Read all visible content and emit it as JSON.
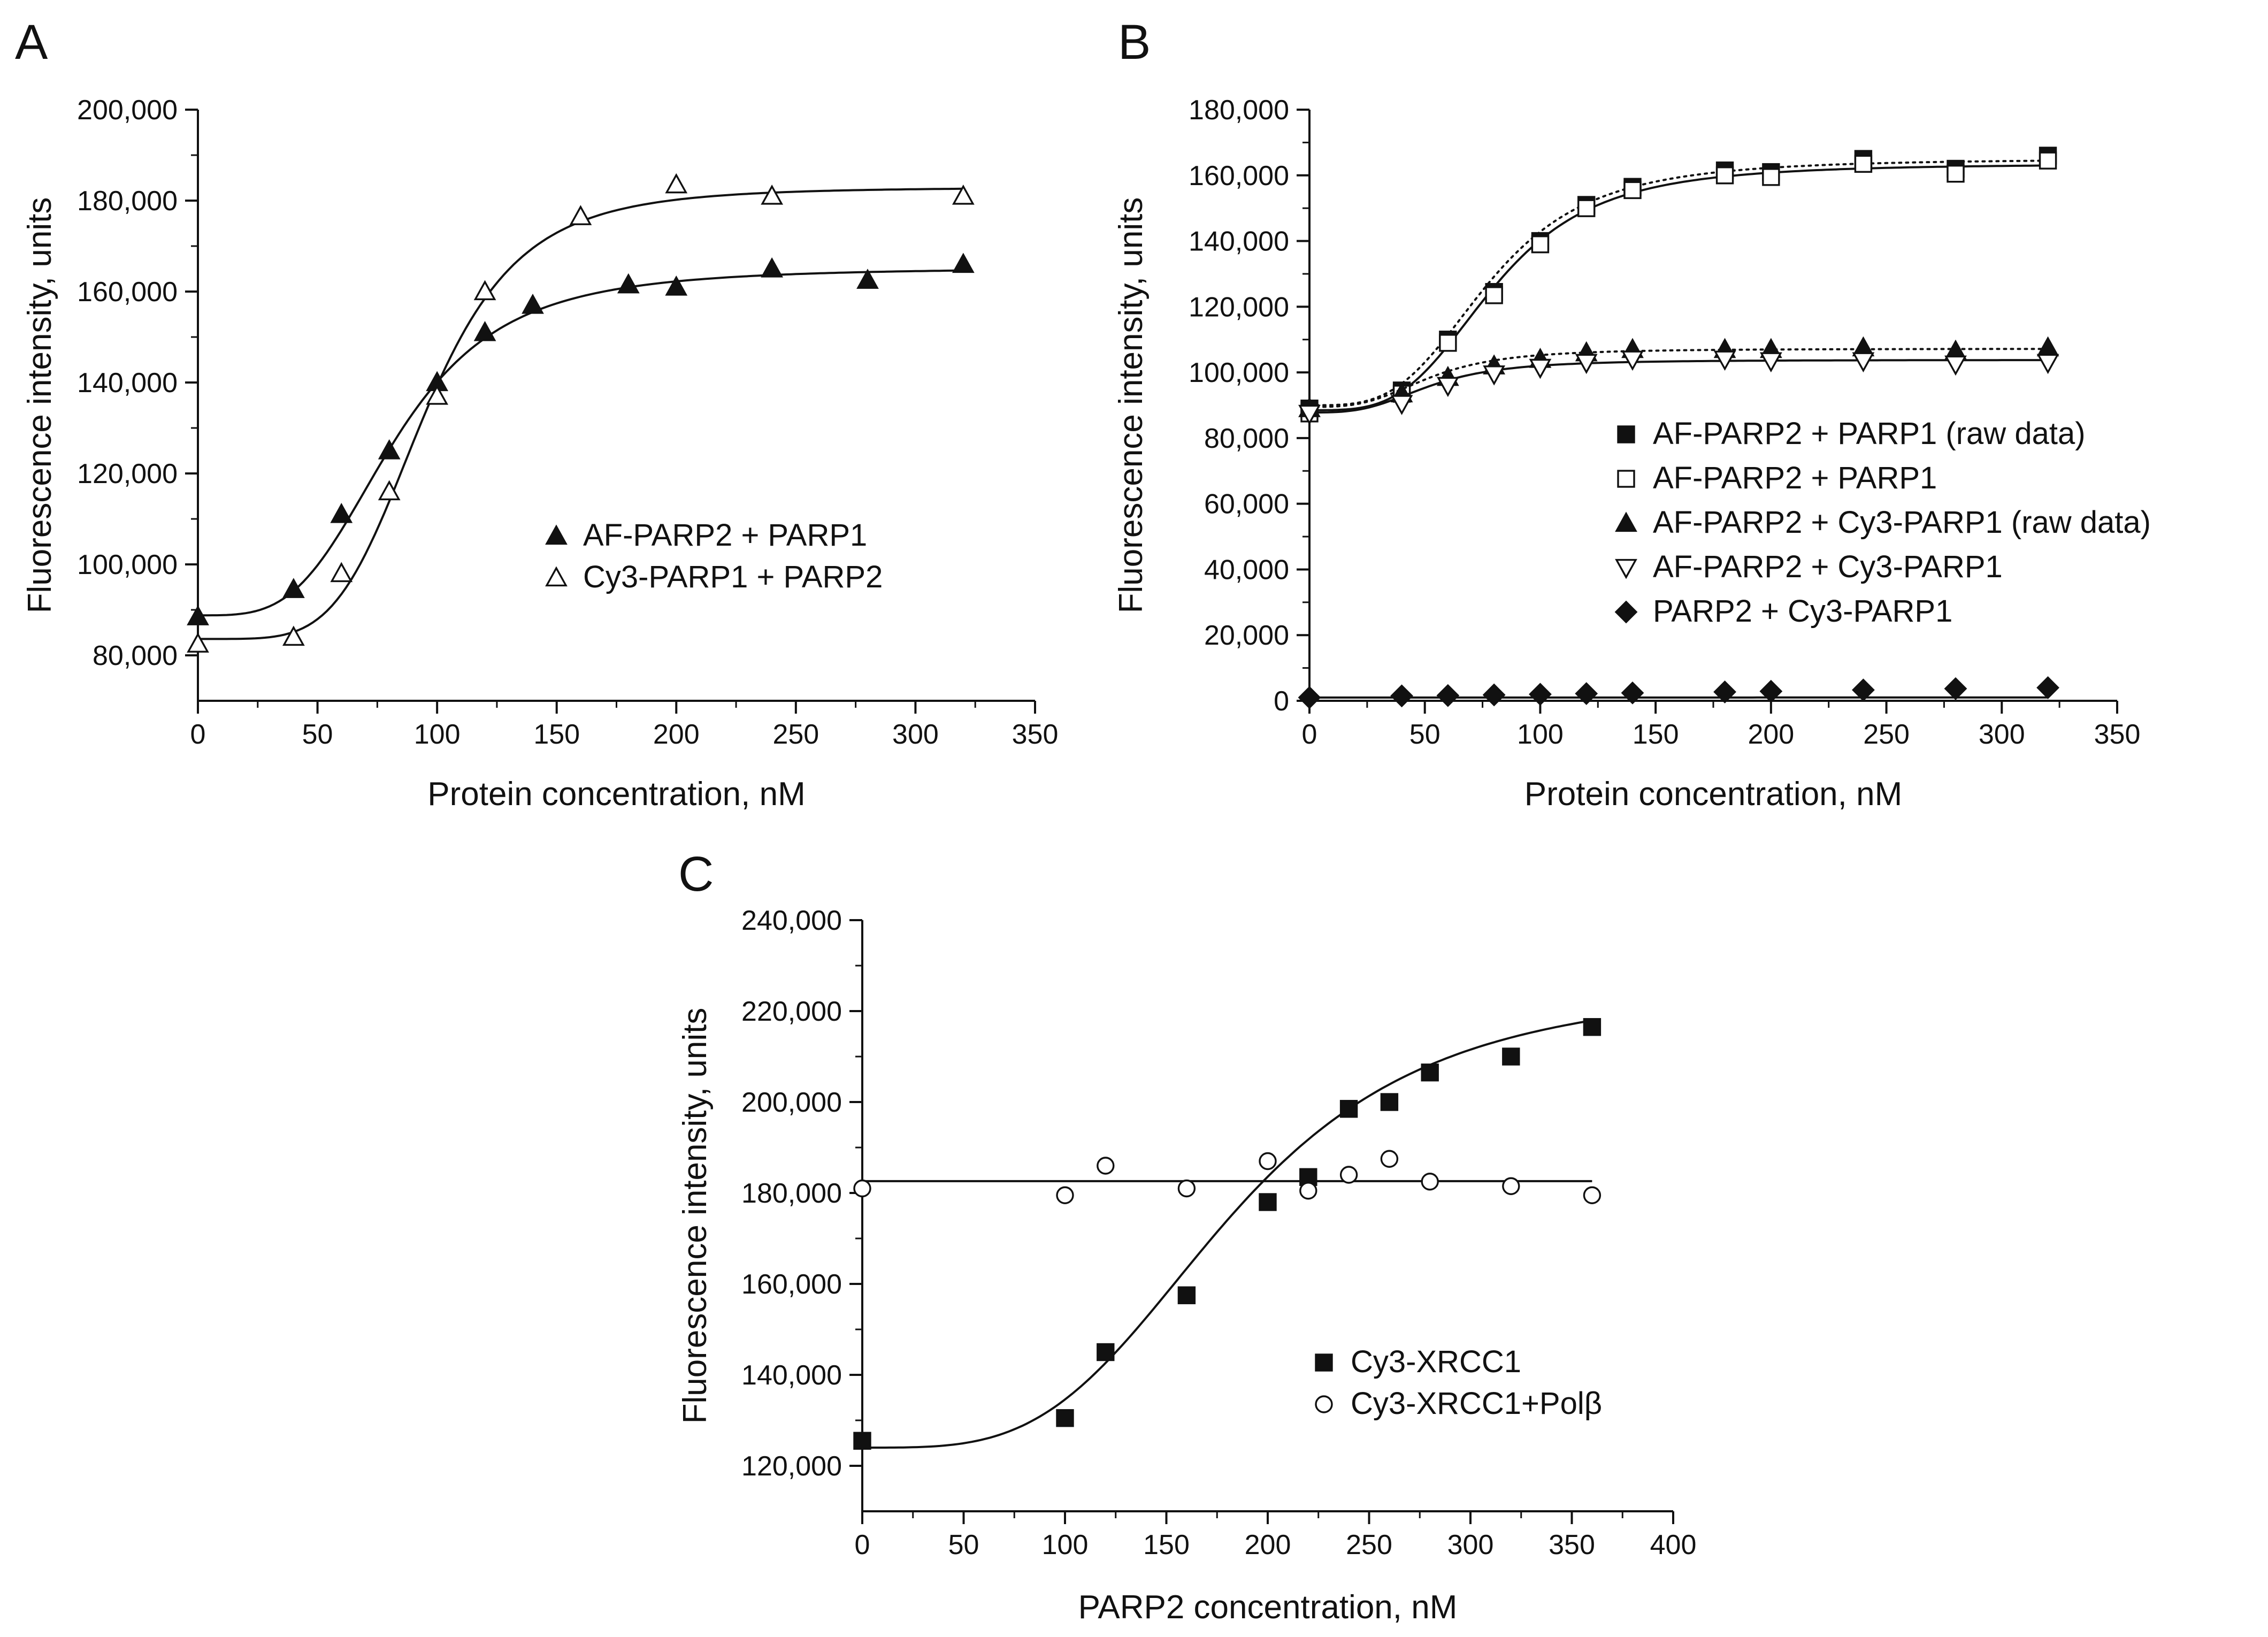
{
  "figure": {
    "panels": [
      "A",
      "B",
      "C"
    ]
  },
  "chart_data": [
    {
      "panel": "A",
      "type": "scatter",
      "xlabel": "Protein concentration, nM",
      "ylabel": "Fluorescence intensity, units",
      "xlim": [
        0,
        350
      ],
      "ylim": [
        70000,
        200000
      ],
      "xticks": [
        0,
        50,
        100,
        150,
        200,
        250,
        300,
        350
      ],
      "yticks": [
        80000,
        100000,
        120000,
        140000,
        160000,
        180000,
        200000
      ],
      "xtick_labels": [
        "0",
        "50",
        "100",
        "150",
        "200",
        "250",
        "300",
        "350"
      ],
      "ytick_labels": [
        "80,000",
        "100,000",
        "120,000",
        "140,000",
        "160,000",
        "180,000",
        "200,000"
      ],
      "legend_position": "lower-right",
      "series": [
        {
          "name": "AF-PARP2 + PARP1",
          "marker": "triangle-filled",
          "x": [
            0,
            40,
            60,
            80,
            100,
            120,
            140,
            180,
            200,
            240,
            280,
            320
          ],
          "y": [
            88500,
            94500,
            111000,
            125000,
            140000,
            151000,
            157000,
            161500,
            161000,
            165000,
            162500,
            166000
          ],
          "fit": {
            "line": "solid",
            "bottom": 88800,
            "top": 165200,
            "x50": 82,
            "n": 3.6
          }
        },
        {
          "name": "Cy3-PARP1 + PARP2",
          "marker": "triangle-open",
          "x": [
            0,
            40,
            60,
            80,
            100,
            120,
            160,
            200,
            240,
            320
          ],
          "y": [
            82500,
            84000,
            98000,
            116000,
            137000,
            160000,
            176500,
            183500,
            181000,
            181000
          ],
          "fit": {
            "line": "solid",
            "bottom": 83600,
            "top": 182900,
            "x50": 95,
            "n": 4.8
          }
        }
      ]
    },
    {
      "panel": "B",
      "type": "scatter",
      "xlabel": "Protein concentration, nM",
      "ylabel": "Fluorescence intensity, units",
      "xlim": [
        0,
        350
      ],
      "ylim": [
        0,
        180000
      ],
      "xticks": [
        0,
        50,
        100,
        150,
        200,
        250,
        300,
        350
      ],
      "yticks": [
        0,
        20000,
        40000,
        60000,
        80000,
        100000,
        120000,
        140000,
        160000,
        180000
      ],
      "xtick_labels": [
        "0",
        "50",
        "100",
        "150",
        "200",
        "250",
        "300",
        "350"
      ],
      "ytick_labels": [
        "0",
        "20,000",
        "40,000",
        "60,000",
        "80,000",
        "100,000",
        "120,000",
        "140,000",
        "160,000",
        "180,000"
      ],
      "legend_position": "center-right",
      "series": [
        {
          "name": "AF-PARP2 + PARP1 (raw data)",
          "marker": "square-filled",
          "x": [
            0,
            40,
            60,
            80,
            100,
            120,
            140,
            180,
            200,
            240,
            280,
            320
          ],
          "y": [
            89000,
            94500,
            110000,
            124500,
            140000,
            151000,
            156500,
            161500,
            161000,
            165000,
            162000,
            166000
          ],
          "fit": {
            "line": "dotted",
            "bottom": 90000,
            "top": 165000,
            "x50": 78,
            "n": 3.5
          }
        },
        {
          "name": "AF-PARP2 + PARP1",
          "marker": "square-open",
          "x": [
            0,
            40,
            60,
            80,
            100,
            120,
            140,
            180,
            200,
            240,
            280,
            320
          ],
          "y": [
            87500,
            93500,
            109000,
            123500,
            139000,
            150000,
            155500,
            160000,
            159500,
            163500,
            160500,
            164500
          ],
          "fit": {
            "line": "solid",
            "bottom": 88500,
            "top": 163500,
            "x50": 80,
            "n": 3.6
          }
        },
        {
          "name": "AF-PARP2 + Cy3-PARP1 (raw data)",
          "marker": "triangle-filled",
          "x": [
            0,
            40,
            60,
            80,
            100,
            120,
            140,
            180,
            200,
            240,
            280,
            320
          ],
          "y": [
            89000,
            93500,
            98500,
            102000,
            104000,
            106000,
            107000,
            107000,
            107000,
            107500,
            106500,
            107500
          ],
          "fit": {
            "line": "dotted",
            "bottom": 89500,
            "top": 107200,
            "x50": 52,
            "n": 3.2
          }
        },
        {
          "name": "AF-PARP2 + Cy3-PARP1",
          "marker": "triangle-down-open",
          "x": [
            0,
            40,
            60,
            80,
            100,
            120,
            140,
            180,
            200,
            240,
            280,
            320
          ],
          "y": [
            87500,
            90500,
            96000,
            99500,
            101500,
            103000,
            104000,
            104000,
            103500,
            103500,
            102500,
            103000
          ],
          "fit": {
            "line": "solid",
            "bottom": 87800,
            "top": 103800,
            "x50": 52,
            "n": 3.2
          }
        },
        {
          "name": "PARP2 + Cy3-PARP1",
          "marker": "diamond-filled",
          "x": [
            0,
            40,
            60,
            80,
            100,
            120,
            140,
            180,
            200,
            240,
            280,
            320
          ],
          "y": [
            1000,
            1500,
            1600,
            1800,
            2000,
            2200,
            2400,
            2700,
            2900,
            3300,
            3700,
            4000
          ],
          "fit": {
            "line": "solid",
            "linear": [
              1000,
              0.0094
            ]
          }
        }
      ]
    },
    {
      "panel": "C",
      "type": "scatter",
      "xlabel": "PARP2 concentration, nM",
      "ylabel": "Fluorescence intensity, units",
      "xlim": [
        0,
        400
      ],
      "ylim": [
        110000,
        240000
      ],
      "xticks": [
        0,
        50,
        100,
        150,
        200,
        250,
        300,
        350,
        400
      ],
      "yticks": [
        120000,
        140000,
        160000,
        180000,
        200000,
        220000,
        240000
      ],
      "xtick_labels": [
        "0",
        "50",
        "100",
        "150",
        "200",
        "250",
        "300",
        "350",
        "400"
      ],
      "ytick_labels": [
        "120,000",
        "140,000",
        "160,000",
        "180,000",
        "200,000",
        "220,000",
        "240,000"
      ],
      "legend_position": "lower-right",
      "series": [
        {
          "name": "Cy3-XRCC1",
          "marker": "square-filled",
          "x": [
            0,
            100,
            120,
            160,
            200,
            220,
            240,
            260,
            280,
            320,
            360
          ],
          "y": [
            125500,
            130500,
            145000,
            157500,
            178000,
            183500,
            198500,
            200000,
            206500,
            210000,
            216500
          ],
          "fit": {
            "line": "solid",
            "bottom": 124000,
            "top": 226000,
            "x50": 182,
            "n": 3.6
          }
        },
        {
          "name": "Cy3-XRCC1+Polβ",
          "marker": "circle-open",
          "x": [
            0,
            100,
            120,
            160,
            200,
            220,
            240,
            260,
            280,
            320,
            360
          ],
          "y": [
            181000,
            179500,
            186000,
            181000,
            187000,
            180500,
            184000,
            187500,
            182500,
            181500,
            179500
          ],
          "fit": {
            "line": "solid",
            "linear": [
              182600,
              0.0
            ]
          }
        }
      ]
    }
  ]
}
